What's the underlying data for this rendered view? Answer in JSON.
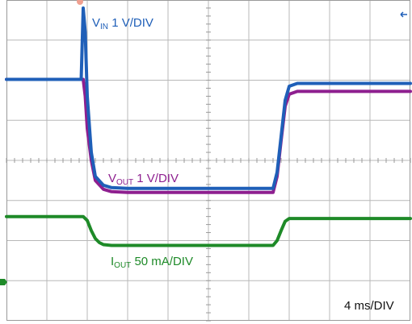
{
  "chart_data": {
    "type": "line",
    "grid": true,
    "divisions": {
      "x": 10,
      "y": 8
    },
    "time_base": "4 ms/DIV",
    "x_unit": "div",
    "xlim": [
      0,
      10
    ],
    "ylim": [
      -4,
      4
    ],
    "series": [
      {
        "name_main": "V",
        "name_sub": "IN",
        "scale": "1 V/DIV",
        "color": "#1f5fb8",
        "x": [
          0.0,
          1.85,
          1.9,
          1.95,
          2.0,
          2.1,
          2.2,
          2.4,
          2.6,
          3.0,
          6.6,
          6.7,
          6.8,
          6.9,
          7.0,
          7.2,
          7.5,
          10.0
        ],
        "y": [
          2.02,
          2.02,
          3.8,
          3.2,
          1.6,
          0.2,
          -0.4,
          -0.62,
          -0.68,
          -0.7,
          -0.7,
          -0.3,
          0.6,
          1.5,
          1.85,
          1.92,
          1.92,
          1.92
        ]
      },
      {
        "name_main": "V",
        "name_sub": "OUT",
        "scale": "1 V/DIV",
        "color": "#8e1f8f",
        "x": [
          0.0,
          1.9,
          1.95,
          2.0,
          2.1,
          2.2,
          2.4,
          2.6,
          3.0,
          6.6,
          6.7,
          6.8,
          6.9,
          7.0,
          7.2,
          7.5,
          10.0
        ],
        "y": [
          2.02,
          2.02,
          1.6,
          0.8,
          0.0,
          -0.5,
          -0.72,
          -0.78,
          -0.8,
          -0.8,
          -0.4,
          0.5,
          1.35,
          1.65,
          1.72,
          1.72,
          1.72
        ]
      },
      {
        "name_main": "I",
        "name_sub": "OUT",
        "scale": "50 mA/DIV",
        "color": "#1e8a28",
        "x": [
          0.0,
          1.9,
          2.0,
          2.1,
          2.2,
          2.3,
          2.4,
          2.6,
          6.6,
          6.7,
          6.8,
          6.9,
          7.0,
          7.2,
          10.0
        ],
        "y": [
          -1.4,
          -1.4,
          -1.5,
          -1.75,
          -1.95,
          -2.05,
          -2.1,
          -2.12,
          -2.12,
          -2.0,
          -1.75,
          -1.52,
          -1.45,
          -1.45,
          -1.45
        ]
      }
    ]
  }
}
